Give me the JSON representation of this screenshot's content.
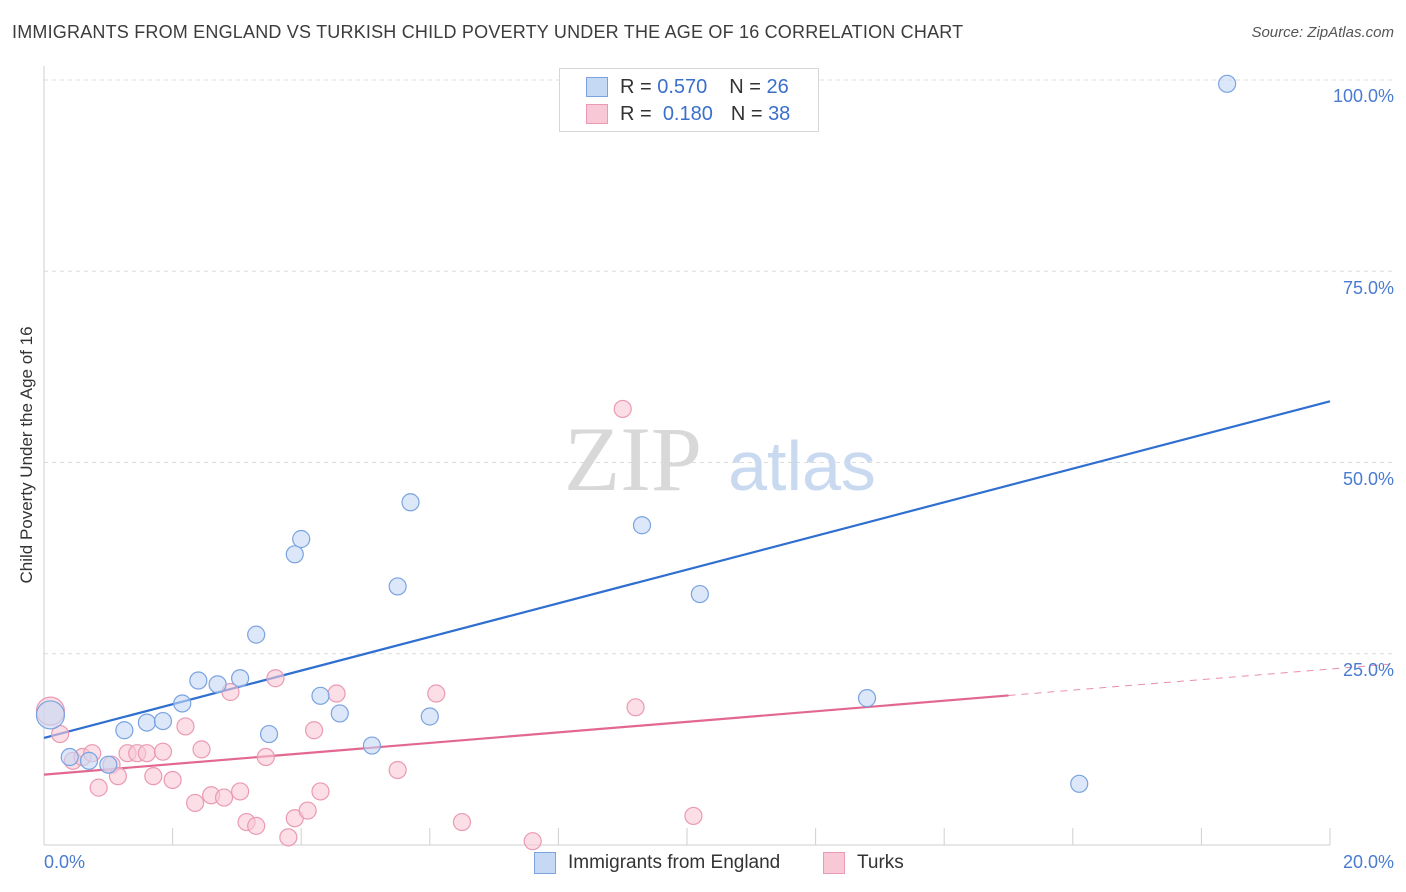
{
  "title": "IMMIGRANTS FROM ENGLAND VS TURKISH CHILD POVERTY UNDER THE AGE OF 16 CORRELATION CHART",
  "source": "Source: ZipAtlas.com",
  "watermark": {
    "zip": "ZIP",
    "atlas": "atlas"
  },
  "colors": {
    "england": "#2f6fd0",
    "england_fill": "#c5d9f5",
    "turks": "#e2688f",
    "turks_fill": "#f9c8d6",
    "tick": "#4a7bd1"
  },
  "legend": {
    "series1": {
      "r_label": "R =",
      "r_value": "0.570",
      "n_label": "N =",
      "n_value": "26"
    },
    "series2": {
      "r_label": "R =",
      "r_value": "0.180",
      "n_label": "N =",
      "n_value": "38"
    }
  },
  "chart_data": {
    "type": "scatter",
    "title": "IMMIGRANTS FROM ENGLAND VS TURKISH CHILD POVERTY UNDER THE AGE OF 16 CORRELATION CHART",
    "xlabel": "",
    "ylabel": "Child Poverty Under the Age of 16",
    "xlim": [
      0,
      20
    ],
    "ylim": [
      0,
      102
    ],
    "x_tick_labels": [
      "0.0%",
      "20.0%"
    ],
    "y_ticks": [
      25,
      50,
      75,
      100
    ],
    "y_tick_labels": [
      "25.0%",
      "50.0%",
      "75.0%",
      "100.0%"
    ],
    "series": [
      {
        "name": "Immigrants from England",
        "points": [
          [
            0.1,
            17.0
          ],
          [
            0.4,
            11.5
          ],
          [
            0.7,
            11.0
          ],
          [
            1.0,
            10.5
          ],
          [
            1.25,
            15.0
          ],
          [
            1.6,
            16.0
          ],
          [
            1.85,
            16.2
          ],
          [
            2.15,
            18.5
          ],
          [
            2.4,
            21.5
          ],
          [
            2.7,
            21.0
          ],
          [
            3.05,
            21.8
          ],
          [
            3.3,
            27.5
          ],
          [
            3.5,
            14.5
          ],
          [
            3.9,
            38.0
          ],
          [
            4.0,
            40.0
          ],
          [
            4.3,
            19.5
          ],
          [
            4.6,
            17.2
          ],
          [
            5.1,
            13.0
          ],
          [
            5.5,
            33.8
          ],
          [
            5.7,
            44.8
          ],
          [
            6.0,
            16.8
          ],
          [
            9.3,
            41.8
          ],
          [
            10.2,
            32.8
          ],
          [
            12.8,
            19.2
          ],
          [
            16.1,
            8.0
          ],
          [
            18.4,
            99.5
          ]
        ],
        "trend": {
          "x": [
            0,
            20
          ],
          "y": [
            14.0,
            58.0
          ],
          "dashed_from": null
        }
      },
      {
        "name": "Turks",
        "points": [
          [
            0.1,
            17.5
          ],
          [
            0.25,
            14.5
          ],
          [
            0.45,
            11.0
          ],
          [
            0.6,
            11.5
          ],
          [
            0.75,
            12.0
          ],
          [
            0.85,
            7.5
          ],
          [
            1.05,
            10.5
          ],
          [
            1.15,
            9.0
          ],
          [
            1.3,
            12.0
          ],
          [
            1.45,
            12.0
          ],
          [
            1.6,
            12.0
          ],
          [
            1.7,
            9.0
          ],
          [
            1.85,
            12.2
          ],
          [
            2.0,
            8.5
          ],
          [
            2.2,
            15.5
          ],
          [
            2.35,
            5.5
          ],
          [
            2.45,
            12.5
          ],
          [
            2.6,
            6.5
          ],
          [
            2.8,
            6.2
          ],
          [
            2.9,
            20.0
          ],
          [
            3.05,
            7.0
          ],
          [
            3.15,
            3.0
          ],
          [
            3.3,
            2.5
          ],
          [
            3.45,
            11.5
          ],
          [
            3.6,
            21.8
          ],
          [
            3.8,
            1.0
          ],
          [
            3.9,
            3.5
          ],
          [
            4.1,
            4.5
          ],
          [
            4.2,
            15.0
          ],
          [
            4.3,
            7.0
          ],
          [
            4.55,
            19.8
          ],
          [
            5.5,
            9.8
          ],
          [
            6.1,
            19.8
          ],
          [
            6.5,
            3.0
          ],
          [
            7.6,
            0.5
          ],
          [
            9.0,
            57.0
          ],
          [
            9.2,
            18.0
          ],
          [
            10.1,
            3.8
          ]
        ],
        "trend": {
          "x": [
            0,
            20
          ],
          "y": [
            9.2,
            23.0
          ],
          "dashed_from": 15
        }
      }
    ]
  },
  "bottom_legend": {
    "england": "Immigrants from England",
    "turks": "Turks"
  }
}
